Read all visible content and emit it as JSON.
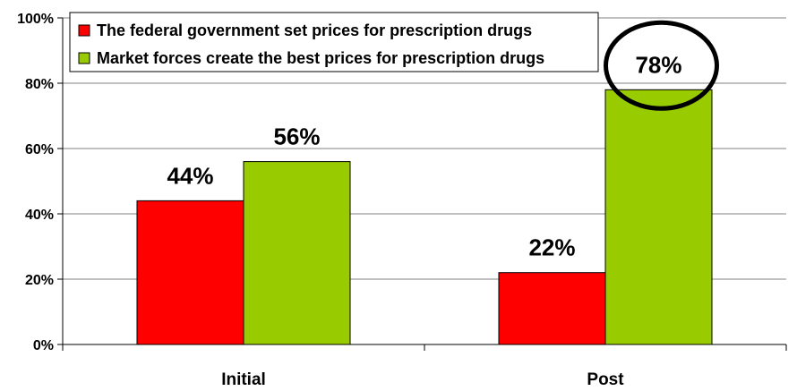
{
  "chart_data": {
    "type": "bar",
    "categories": [
      "Initial",
      "Post"
    ],
    "series": [
      {
        "name": "The federal government set prices for prescription drugs",
        "values": [
          44,
          22
        ],
        "color": "#ff0000"
      },
      {
        "name": "Market forces create the best prices for prescription drugs",
        "values": [
          56,
          78
        ],
        "color": "#99cc00"
      }
    ],
    "data_labels": [
      [
        "44%",
        "22%"
      ],
      [
        "56%",
        "78%"
      ]
    ],
    "y_ticks": [
      "0%",
      "20%",
      "40%",
      "60%",
      "80%",
      "100%"
    ],
    "ylim": [
      0,
      100
    ],
    "y_unit": "%",
    "grid": true,
    "legend_position": "top-left",
    "highlight": {
      "series": 1,
      "category": 1,
      "shape": "ellipse",
      "color": "#000000"
    }
  }
}
